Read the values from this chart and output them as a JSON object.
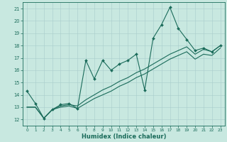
{
  "xlabel": "Humidex (Indice chaleur)",
  "xlim": [
    -0.5,
    23.5
  ],
  "ylim": [
    11.5,
    21.5
  ],
  "xticks": [
    0,
    1,
    2,
    3,
    4,
    5,
    6,
    7,
    8,
    9,
    10,
    11,
    12,
    13,
    14,
    15,
    16,
    17,
    18,
    19,
    20,
    21,
    22,
    23
  ],
  "yticks": [
    12,
    13,
    14,
    15,
    16,
    17,
    18,
    19,
    20,
    21
  ],
  "background_color": "#c8e8e0",
  "line_color": "#1a6b5a",
  "grid_color": "#a8cccc",
  "line_jagged": [
    14.3,
    13.3,
    12.1,
    12.8,
    13.2,
    13.3,
    12.9,
    16.8,
    15.3,
    16.8,
    16.0,
    16.5,
    16.8,
    17.3,
    14.4,
    18.6,
    19.7,
    21.1,
    19.4,
    18.5,
    17.6,
    17.8,
    17.5,
    18.0
  ],
  "line_trend1": [
    13.0,
    13.0,
    12.1,
    12.8,
    13.1,
    13.2,
    13.1,
    13.6,
    14.0,
    14.4,
    14.7,
    15.1,
    15.4,
    15.8,
    16.1,
    16.5,
    16.9,
    17.3,
    17.6,
    17.9,
    17.3,
    17.7,
    17.5,
    18.0
  ],
  "line_trend2": [
    13.0,
    13.0,
    12.1,
    12.8,
    13.0,
    13.1,
    12.9,
    13.3,
    13.7,
    14.0,
    14.3,
    14.7,
    15.0,
    15.4,
    15.7,
    16.1,
    16.5,
    16.9,
    17.2,
    17.5,
    16.9,
    17.3,
    17.2,
    17.8
  ]
}
